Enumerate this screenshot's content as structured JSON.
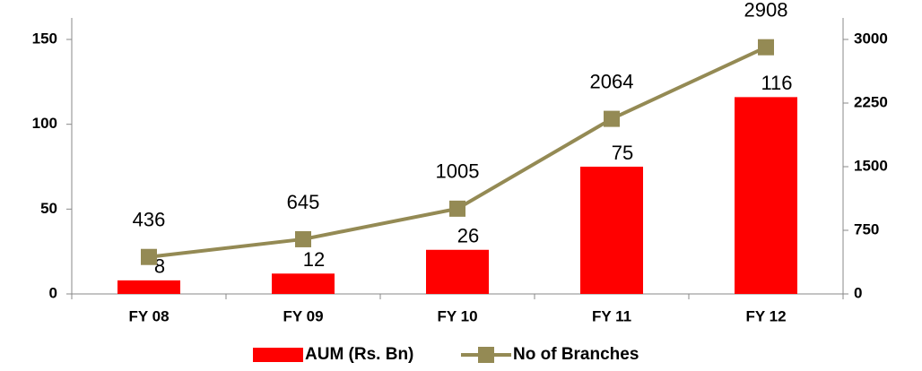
{
  "chart_data": {
    "type": "bar_line",
    "categories": [
      "FY 08",
      "FY 09",
      "FY 10",
      "FY 11",
      "FY 12"
    ],
    "series": [
      {
        "name": "AUM (Rs. Bn)",
        "type": "bar",
        "color": "#ff0000",
        "values": [
          8,
          12,
          26,
          75,
          116
        ]
      },
      {
        "name": "No of Branches",
        "type": "line",
        "axis": "y2",
        "color": "#948a54",
        "values": [
          436,
          645,
          1005,
          2064,
          2908
        ]
      }
    ],
    "ylim": [
      0,
      150
    ],
    "yticks": [
      0,
      50,
      100,
      150
    ],
    "y2lim": [
      0,
      3000
    ],
    "y2ticks": [
      0,
      750,
      1500,
      2250,
      3000
    ],
    "legend": "bottom"
  }
}
